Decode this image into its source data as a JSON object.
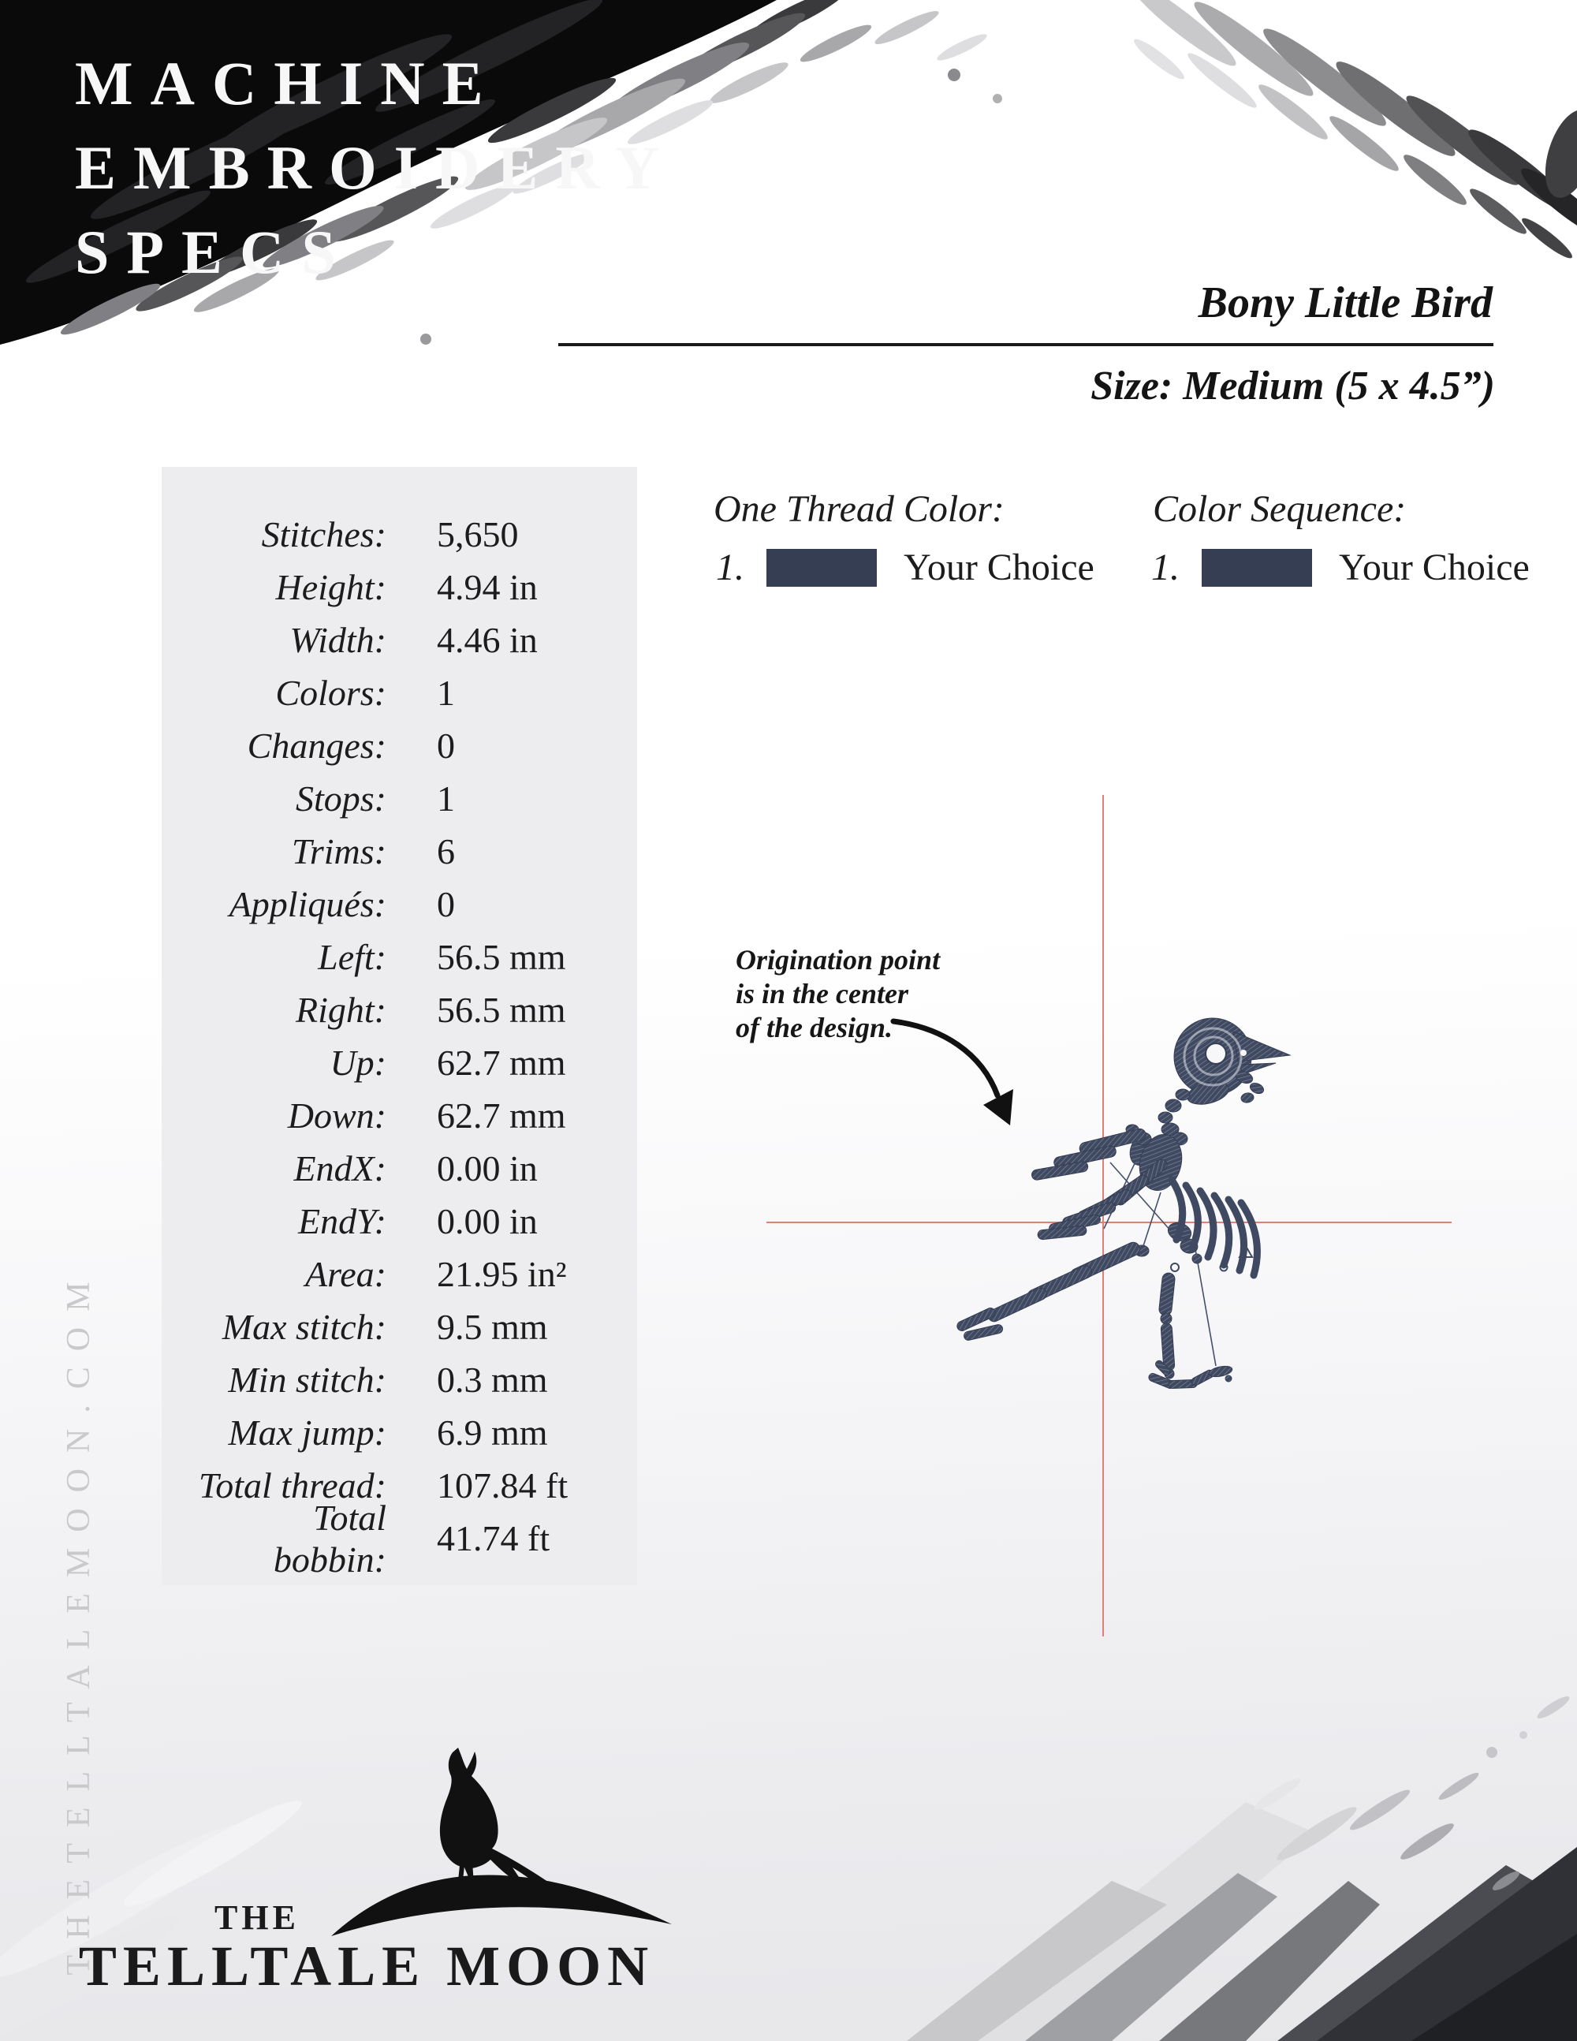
{
  "header": {
    "title_line1": "MACHINE",
    "title_line2": "EMBROIDERY",
    "title_line3": "SPECS",
    "design_name": "Bony Little Bird",
    "size_label": "Size: Medium (5 x 4.5”)"
  },
  "specs": {
    "rows": [
      {
        "label": "Stitches:",
        "value": "5,650"
      },
      {
        "label": "Height:",
        "value": "4.94 in"
      },
      {
        "label": "Width:",
        "value": "4.46 in"
      },
      {
        "label": "Colors:",
        "value": "1"
      },
      {
        "label": "Changes:",
        "value": "0"
      },
      {
        "label": "Stops:",
        "value": "1"
      },
      {
        "label": "Trims:",
        "value": "6"
      },
      {
        "label": "Appliqués:",
        "value": "0"
      },
      {
        "label": "Left:",
        "value": "56.5 mm"
      },
      {
        "label": "Right:",
        "value": "56.5 mm"
      },
      {
        "label": "Up:",
        "value": "62.7 mm"
      },
      {
        "label": "Down:",
        "value": "62.7 mm"
      },
      {
        "label": "EndX:",
        "value": "0.00 in"
      },
      {
        "label": "EndY:",
        "value": "0.00 in"
      },
      {
        "label": "Area:",
        "value": "21.95 in²"
      },
      {
        "label": "Max stitch:",
        "value": "9.5 mm"
      },
      {
        "label": "Min stitch:",
        "value": "0.3 mm"
      },
      {
        "label": "Max jump:",
        "value": "6.9 mm"
      },
      {
        "label": "Total thread:",
        "value": "107.84 ft"
      },
      {
        "label": "Total bobbin:",
        "value": "41.74 ft"
      }
    ]
  },
  "thread_color": {
    "heading": "One Thread Color:",
    "item": {
      "number": "1.",
      "swatch_color": "#353e53",
      "label": "Your Choice"
    }
  },
  "color_sequence": {
    "heading": "Color Sequence:",
    "item": {
      "number": "1.",
      "swatch_color": "#353e53",
      "label": "Your Choice"
    }
  },
  "annotation": {
    "line1": "Origination point",
    "line2": "is in the center",
    "line3": "of the design."
  },
  "preview": {
    "crosshair_color": "#dd8078",
    "thread_color": "#3f4961"
  },
  "footer": {
    "brand_top": "THE",
    "brand_bottom": "TELLTALE MOON",
    "website_vertical": "THETELLTALEMOON.COM"
  }
}
